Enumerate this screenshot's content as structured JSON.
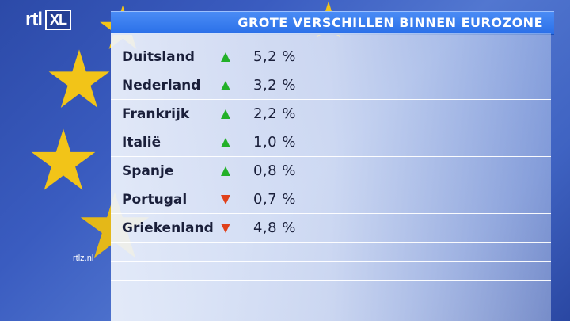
{
  "logo": {
    "brand": "rtl",
    "suffix": "XL"
  },
  "title": "GROTE VERSCHILLEN BINNEN EUROZONE",
  "rows": [
    {
      "country": "Duitsland",
      "direction": "up",
      "value": "5,2 %"
    },
    {
      "country": "Nederland",
      "direction": "up",
      "value": "3,2 %"
    },
    {
      "country": "Frankrijk",
      "direction": "up",
      "value": "2,2 %"
    },
    {
      "country": "Italië",
      "direction": "up",
      "value": "1,0 %"
    },
    {
      "country": "Spanje",
      "direction": "up",
      "value": "0,8 %"
    },
    {
      "country": "Portugal",
      "direction": "down",
      "value": "0,7 %"
    },
    {
      "country": "Griekenland",
      "direction": "down",
      "value": "4,8 %"
    }
  ],
  "website": "rtlz.nl",
  "colors": {
    "up": "#22b028",
    "down": "#e0401a",
    "title_bar": "#2a6fe8",
    "background": "#3a5cc0",
    "star": "#f2c418"
  },
  "icons": {
    "up": "triangle-up-icon",
    "down": "triangle-down-icon"
  }
}
